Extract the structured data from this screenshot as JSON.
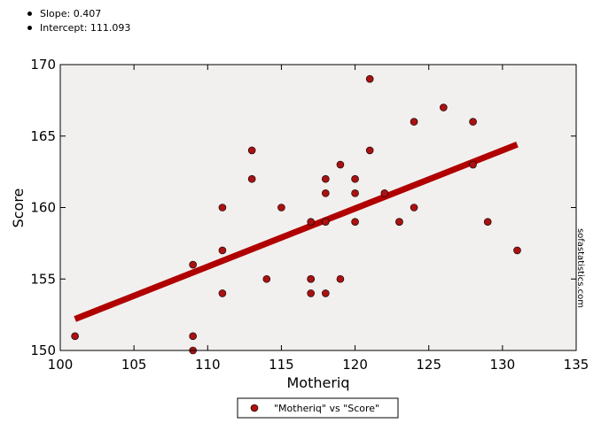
{
  "stats": {
    "slope": "Slope: 0.407",
    "intercept": "Intercept: 111.093"
  },
  "watermark": "sofastatistics.com",
  "colors": {
    "plot_background": "#f2f0ef",
    "point_fill": "#aa1111",
    "regression_line": "#b00000"
  },
  "chart_data": {
    "type": "scatter",
    "xlabel": "Motheriq",
    "ylabel": "Score",
    "xlim": [
      100,
      135
    ],
    "ylim": [
      150,
      170
    ],
    "x_ticks": [
      100,
      105,
      110,
      115,
      120,
      125,
      130,
      135
    ],
    "y_ticks": [
      150,
      155,
      160,
      165,
      170
    ],
    "grid": false,
    "legend": {
      "position": "bottom-center",
      "entries": [
        "\"Motheriq\" vs \"Score\""
      ]
    },
    "series": [
      {
        "name": "\"Motheriq\" vs \"Score\"",
        "points": [
          [
            101,
            151
          ],
          [
            109,
            156
          ],
          [
            109,
            151
          ],
          [
            109,
            150
          ],
          [
            111,
            160
          ],
          [
            111,
            157
          ],
          [
            111,
            154
          ],
          [
            113,
            164
          ],
          [
            113,
            162
          ],
          [
            114,
            155
          ],
          [
            115,
            160
          ],
          [
            117,
            159
          ],
          [
            117,
            155
          ],
          [
            117,
            155
          ],
          [
            117,
            154
          ],
          [
            118,
            162
          ],
          [
            118,
            161
          ],
          [
            118,
            159
          ],
          [
            118,
            154
          ],
          [
            119,
            163
          ],
          [
            119,
            155
          ],
          [
            120,
            162
          ],
          [
            120,
            161
          ],
          [
            120,
            159
          ],
          [
            121,
            169
          ],
          [
            121,
            164
          ],
          [
            122,
            161
          ],
          [
            123,
            159
          ],
          [
            123,
            159
          ],
          [
            124,
            166
          ],
          [
            124,
            160
          ],
          [
            126,
            167
          ],
          [
            128,
            166
          ],
          [
            128,
            163
          ],
          [
            129,
            159
          ],
          [
            131,
            157
          ]
        ]
      }
    ],
    "regression": {
      "slope": 0.407,
      "intercept": 111.093,
      "x_range": [
        101,
        131
      ]
    }
  }
}
